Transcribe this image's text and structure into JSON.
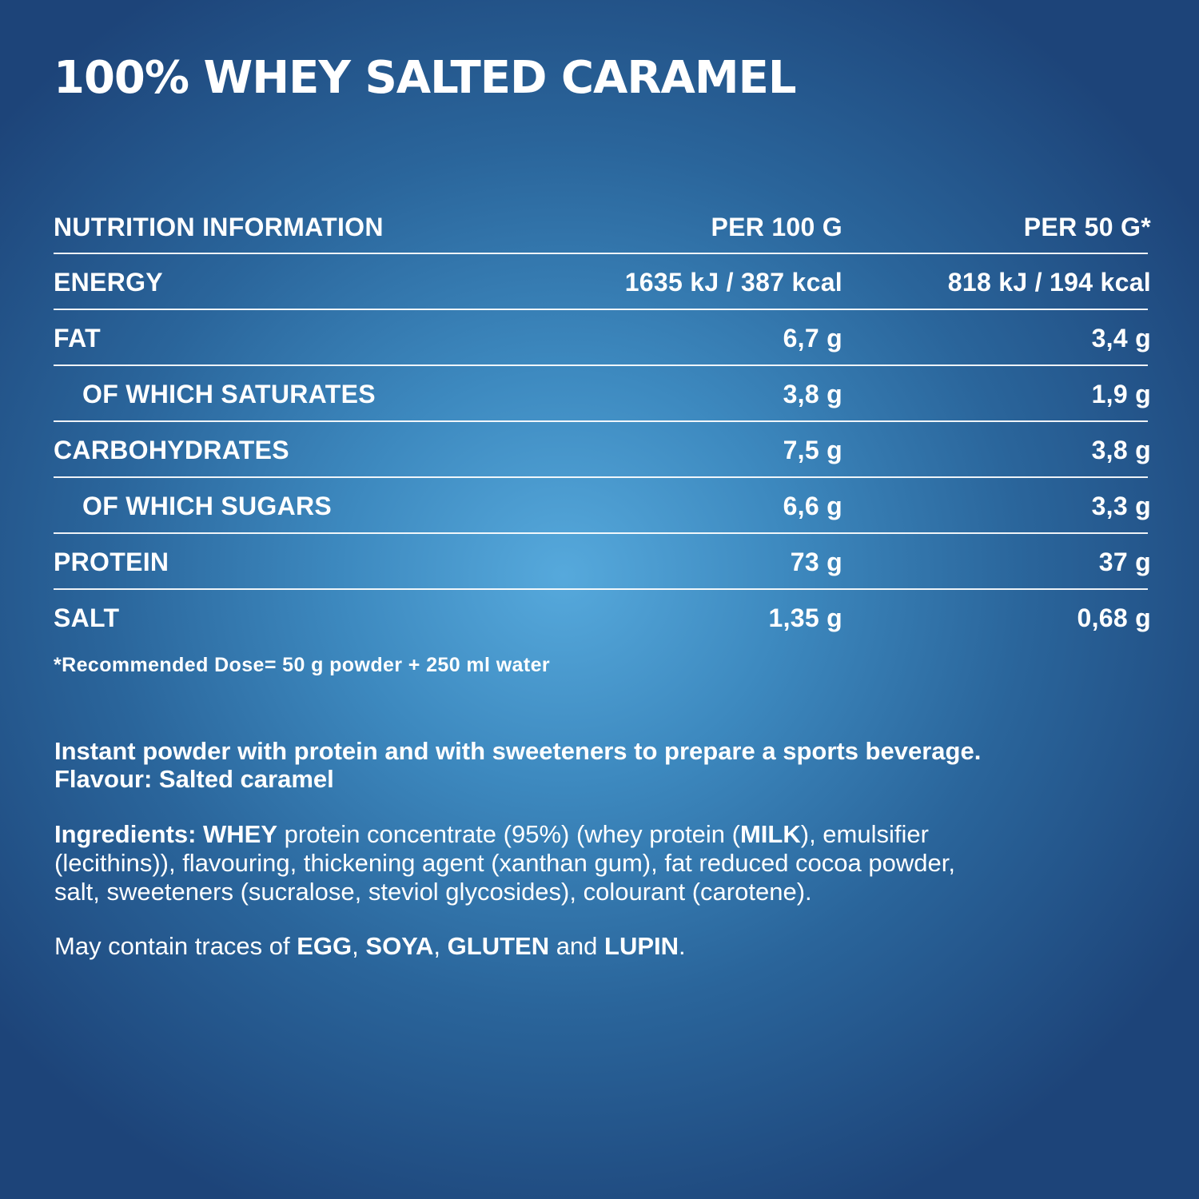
{
  "title": "100% WHEY SALTED CARAMEL",
  "table": {
    "headers": {
      "name": "NUTRITION INFORMATION",
      "col1": "PER 100 G",
      "col2": "PER 50 G*"
    },
    "rows": [
      {
        "name": "ENERGY",
        "v1": "1635 kJ / 387 kcal",
        "v2": "818 kJ / 194 kcal"
      },
      {
        "name": "FAT",
        "v1": "6,7 g",
        "v2": "3,4 g"
      },
      {
        "name": "OF WHICH SATURATES",
        "v1": "3,8 g",
        "v2": "1,9 g"
      },
      {
        "name": "CARBOHYDRATES",
        "v1": "7,5 g",
        "v2": "3,8 g"
      },
      {
        "name": "OF WHICH SUGARS",
        "v1": "6,6 g",
        "v2": "3,3 g"
      },
      {
        "name": "PROTEIN",
        "v1": "73 g",
        "v2": "37 g"
      },
      {
        "name": "SALT",
        "v1": "1,35 g",
        "v2": "0,68 g"
      }
    ]
  },
  "footnote": "*Recommended Dose= 50 g powder + 250 ml water",
  "description": {
    "line1": "Instant powder with protein and with sweeteners to prepare a sports beverage.",
    "line2": "Flavour: Salted caramel"
  },
  "ingredients": {
    "label": "Ingredients:",
    "whey": "WHEY",
    "part1": " protein concentrate (95%) (whey protein (",
    "milk": "MILK",
    "part2": "), emulsifier",
    "line2": "(lecithins)), flavouring, thickening agent (xanthan gum), fat reduced cocoa powder,",
    "line3": "salt, sweeteners (sucralose, steviol glycosides), colourant (carotene)."
  },
  "traces": {
    "intro": "May contain traces of ",
    "a1": "EGG",
    "sep1": ", ",
    "a2": "SOYA",
    "sep2": ", ",
    "a3": "GLUTEN",
    "sep3": " and ",
    "a4": "LUPIN",
    "end": "."
  },
  "colors": {
    "background_center": "#56a9dc",
    "background_edge": "#1d4479",
    "text": "#ffffff"
  }
}
